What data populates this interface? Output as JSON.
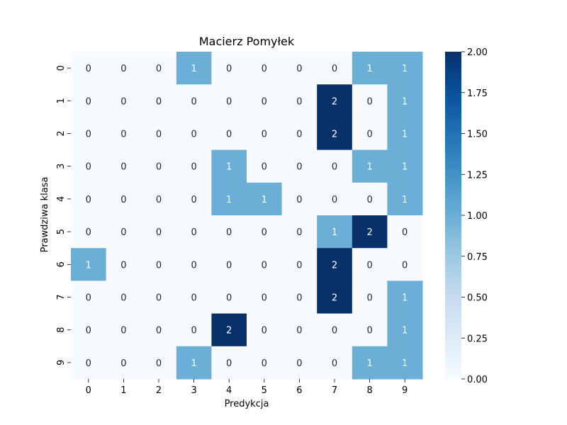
{
  "chart_data": {
    "type": "heatmap",
    "title": "Macierz Pomyłek",
    "xlabel": "Predykcja",
    "ylabel": "Prawdziwa klasa",
    "x_categories": [
      "0",
      "1",
      "2",
      "3",
      "4",
      "5",
      "6",
      "7",
      "8",
      "9"
    ],
    "y_categories": [
      "0",
      "1",
      "2",
      "3",
      "4",
      "5",
      "6",
      "7",
      "8",
      "9"
    ],
    "values": [
      [
        0,
        0,
        0,
        1,
        0,
        0,
        0,
        0,
        1,
        1
      ],
      [
        0,
        0,
        0,
        0,
        0,
        0,
        0,
        2,
        0,
        1
      ],
      [
        0,
        0,
        0,
        0,
        0,
        0,
        0,
        2,
        0,
        1
      ],
      [
        0,
        0,
        0,
        0,
        1,
        0,
        0,
        0,
        1,
        1
      ],
      [
        0,
        0,
        0,
        0,
        1,
        1,
        0,
        0,
        0,
        1
      ],
      [
        0,
        0,
        0,
        0,
        0,
        0,
        0,
        1,
        2,
        0
      ],
      [
        1,
        0,
        0,
        0,
        0,
        0,
        0,
        2,
        0,
        0
      ],
      [
        0,
        0,
        0,
        0,
        0,
        0,
        0,
        2,
        0,
        1
      ],
      [
        0,
        0,
        0,
        0,
        2,
        0,
        0,
        0,
        0,
        1
      ],
      [
        0,
        0,
        0,
        1,
        0,
        0,
        0,
        0,
        1,
        1
      ]
    ],
    "colorbar": {
      "range": [
        0,
        2
      ],
      "ticks": [
        "0.00",
        "0.25",
        "0.50",
        "0.75",
        "1.00",
        "1.25",
        "1.50",
        "1.75",
        "2.00"
      ],
      "colormap": "Blues",
      "colors": {
        "low": "#f7fbff",
        "mid": "#6baed6",
        "high": "#08306b"
      }
    }
  }
}
